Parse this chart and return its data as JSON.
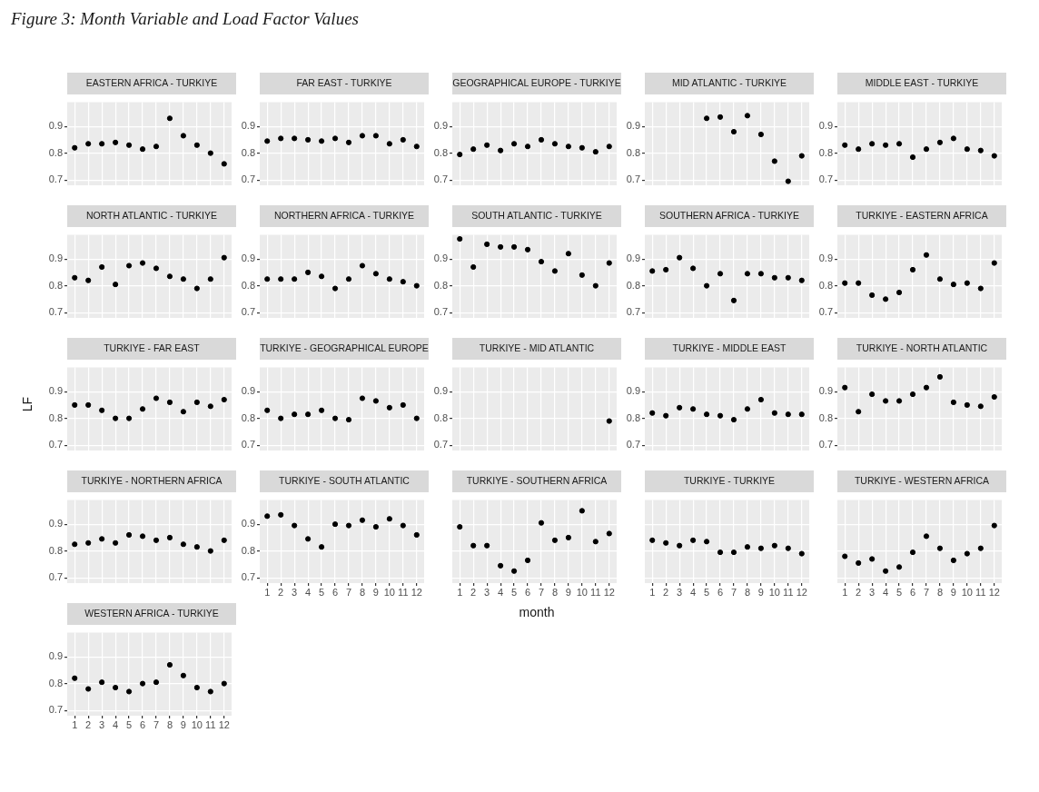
{
  "chart_data": [
    {
      "type": "scatter",
      "title": "EASTERN AFRICA - TURKIYE",
      "annotations": [
        "Figure 3: Month Variable and Load Factor Values"
      ],
      "x": [
        1,
        2,
        3,
        4,
        5,
        6,
        7,
        8,
        9,
        10,
        11,
        12
      ],
      "values": [
        0.82,
        0.835,
        0.835,
        0.84,
        0.83,
        0.815,
        0.825,
        0.93,
        0.865,
        0.83,
        0.8,
        0.76
      ],
      "color": "#000000",
      "marker": "circle",
      "xlim": [
        0.45,
        12.55
      ],
      "ylim": [
        0.68,
        0.99
      ],
      "xticks": [
        1,
        2,
        3,
        4,
        5,
        6,
        7,
        8,
        9,
        10,
        11,
        12
      ],
      "yticks": [
        0.7,
        0.8,
        0.9
      ],
      "grid": true,
      "tick_labels": "y"
    },
    {
      "type": "scatter",
      "title": "FAR EAST - TURKIYE",
      "x": [
        1,
        2,
        3,
        4,
        5,
        6,
        7,
        8,
        9,
        10,
        11,
        12
      ],
      "values": [
        0.845,
        0.855,
        0.855,
        0.85,
        0.845,
        0.855,
        0.84,
        0.865,
        0.865,
        0.835,
        0.85,
        0.825
      ],
      "color": "#000000",
      "marker": "circle",
      "xlim": [
        0.45,
        12.55
      ],
      "ylim": [
        0.68,
        0.99
      ],
      "xticks": [
        1,
        2,
        3,
        4,
        5,
        6,
        7,
        8,
        9,
        10,
        11,
        12
      ],
      "yticks": [
        0.7,
        0.8,
        0.9
      ],
      "grid": true,
      "tick_labels": "y"
    },
    {
      "type": "scatter",
      "title": "GEOGRAPHICAL EUROPE - TURKIYE",
      "x": [
        1,
        2,
        3,
        4,
        5,
        6,
        7,
        8,
        9,
        10,
        11,
        12
      ],
      "values": [
        0.795,
        0.815,
        0.83,
        0.81,
        0.835,
        0.825,
        0.85,
        0.835,
        0.825,
        0.82,
        0.805,
        0.825
      ],
      "color": "#000000",
      "marker": "circle",
      "xlim": [
        0.45,
        12.55
      ],
      "ylim": [
        0.68,
        0.99
      ],
      "xticks": [
        1,
        2,
        3,
        4,
        5,
        6,
        7,
        8,
        9,
        10,
        11,
        12
      ],
      "yticks": [
        0.7,
        0.8,
        0.9
      ],
      "grid": true,
      "tick_labels": "y"
    },
    {
      "type": "scatter",
      "title": "MID ATLANTIC - TURKIYE",
      "x": [
        5,
        6,
        7,
        8,
        9,
        10,
        11,
        12
      ],
      "values": [
        0.93,
        0.935,
        0.88,
        0.94,
        0.87,
        0.77,
        0.695,
        0.79
      ],
      "color": "#000000",
      "marker": "circle",
      "xlim": [
        0.45,
        12.55
      ],
      "ylim": [
        0.68,
        0.99
      ],
      "xticks": [
        1,
        2,
        3,
        4,
        5,
        6,
        7,
        8,
        9,
        10,
        11,
        12
      ],
      "yticks": [
        0.7,
        0.8,
        0.9
      ],
      "grid": true,
      "tick_labels": "y"
    },
    {
      "type": "scatter",
      "title": "MIDDLE EAST - TURKIYE",
      "x": [
        1,
        2,
        3,
        4,
        5,
        6,
        7,
        8,
        9,
        10,
        11,
        12
      ],
      "values": [
        0.83,
        0.815,
        0.835,
        0.83,
        0.835,
        0.785,
        0.815,
        0.84,
        0.855,
        0.815,
        0.81,
        0.79
      ],
      "color": "#000000",
      "marker": "circle",
      "xlim": [
        0.45,
        12.55
      ],
      "ylim": [
        0.68,
        0.99
      ],
      "xticks": [
        1,
        2,
        3,
        4,
        5,
        6,
        7,
        8,
        9,
        10,
        11,
        12
      ],
      "yticks": [
        0.7,
        0.8,
        0.9
      ],
      "grid": true,
      "tick_labels": "y"
    },
    {
      "type": "scatter",
      "title": "NORTH ATLANTIC - TURKIYE",
      "x": [
        1,
        2,
        3,
        4,
        5,
        6,
        7,
        8,
        9,
        10,
        11,
        12
      ],
      "values": [
        0.83,
        0.82,
        0.87,
        0.805,
        0.875,
        0.885,
        0.865,
        0.835,
        0.825,
        0.79,
        0.825,
        0.905
      ],
      "color": "#000000",
      "marker": "circle",
      "xlim": [
        0.45,
        12.55
      ],
      "ylim": [
        0.68,
        0.99
      ],
      "xticks": [
        1,
        2,
        3,
        4,
        5,
        6,
        7,
        8,
        9,
        10,
        11,
        12
      ],
      "yticks": [
        0.7,
        0.8,
        0.9
      ],
      "grid": true,
      "tick_labels": "y"
    },
    {
      "type": "scatter",
      "title": "NORTHERN AFRICA - TURKIYE",
      "x": [
        1,
        2,
        3,
        4,
        5,
        6,
        7,
        8,
        9,
        10,
        11,
        12
      ],
      "values": [
        0.825,
        0.825,
        0.825,
        0.85,
        0.835,
        0.79,
        0.825,
        0.875,
        0.845,
        0.825,
        0.815,
        0.8
      ],
      "color": "#000000",
      "marker": "circle",
      "xlim": [
        0.45,
        12.55
      ],
      "ylim": [
        0.68,
        0.99
      ],
      "xticks": [
        1,
        2,
        3,
        4,
        5,
        6,
        7,
        8,
        9,
        10,
        11,
        12
      ],
      "yticks": [
        0.7,
        0.8,
        0.9
      ],
      "grid": true,
      "tick_labels": "y"
    },
    {
      "type": "scatter",
      "title": "SOUTH ATLANTIC - TURKIYE",
      "x": [
        1,
        2,
        3,
        4,
        5,
        6,
        7,
        8,
        9,
        10,
        11,
        12
      ],
      "values": [
        0.975,
        0.87,
        0.955,
        0.945,
        0.945,
        0.935,
        0.89,
        0.855,
        0.92,
        0.84,
        0.8,
        0.885
      ],
      "color": "#000000",
      "marker": "circle",
      "xlim": [
        0.45,
        12.55
      ],
      "ylim": [
        0.68,
        0.99
      ],
      "xticks": [
        1,
        2,
        3,
        4,
        5,
        6,
        7,
        8,
        9,
        10,
        11,
        12
      ],
      "yticks": [
        0.7,
        0.8,
        0.9
      ],
      "grid": true,
      "tick_labels": "y"
    },
    {
      "type": "scatter",
      "title": "SOUTHERN AFRICA - TURKIYE",
      "x": [
        1,
        2,
        3,
        4,
        5,
        6,
        7,
        8,
        9,
        10,
        11,
        12
      ],
      "values": [
        0.855,
        0.86,
        0.905,
        0.865,
        0.8,
        0.845,
        0.745,
        0.845,
        0.845,
        0.83,
        0.83,
        0.82
      ],
      "color": "#000000",
      "marker": "circle",
      "xlim": [
        0.45,
        12.55
      ],
      "ylim": [
        0.68,
        0.99
      ],
      "xticks": [
        1,
        2,
        3,
        4,
        5,
        6,
        7,
        8,
        9,
        10,
        11,
        12
      ],
      "yticks": [
        0.7,
        0.8,
        0.9
      ],
      "grid": true,
      "tick_labels": "y"
    },
    {
      "type": "scatter",
      "title": "TURKIYE - EASTERN AFRICA",
      "x": [
        1,
        2,
        3,
        4,
        5,
        6,
        7,
        8,
        9,
        10,
        11,
        12
      ],
      "values": [
        0.81,
        0.81,
        0.765,
        0.75,
        0.775,
        0.86,
        0.915,
        0.825,
        0.805,
        0.81,
        0.79,
        0.885
      ],
      "color": "#000000",
      "marker": "circle",
      "xlim": [
        0.45,
        12.55
      ],
      "ylim": [
        0.68,
        0.99
      ],
      "xticks": [
        1,
        2,
        3,
        4,
        5,
        6,
        7,
        8,
        9,
        10,
        11,
        12
      ],
      "yticks": [
        0.7,
        0.8,
        0.9
      ],
      "grid": true,
      "tick_labels": "y"
    },
    {
      "type": "scatter",
      "title": "TURKIYE - FAR EAST",
      "ylabel": "LF",
      "x": [
        1,
        2,
        3,
        4,
        5,
        6,
        7,
        8,
        9,
        10,
        11,
        12
      ],
      "values": [
        0.85,
        0.85,
        0.83,
        0.8,
        0.8,
        0.835,
        0.875,
        0.86,
        0.825,
        0.86,
        0.845,
        0.87
      ],
      "color": "#000000",
      "marker": "circle",
      "xlim": [
        0.45,
        12.55
      ],
      "ylim": [
        0.68,
        0.99
      ],
      "xticks": [
        1,
        2,
        3,
        4,
        5,
        6,
        7,
        8,
        9,
        10,
        11,
        12
      ],
      "yticks": [
        0.7,
        0.8,
        0.9
      ],
      "grid": true,
      "tick_labels": "y"
    },
    {
      "type": "scatter",
      "title": "TURKIYE - GEOGRAPHICAL EUROPE",
      "x": [
        1,
        2,
        3,
        4,
        5,
        6,
        7,
        8,
        9,
        10,
        11,
        12
      ],
      "values": [
        0.83,
        0.8,
        0.815,
        0.815,
        0.83,
        0.8,
        0.795,
        0.875,
        0.865,
        0.84,
        0.85,
        0.8
      ],
      "color": "#000000",
      "marker": "circle",
      "xlim": [
        0.45,
        12.55
      ],
      "ylim": [
        0.68,
        0.99
      ],
      "xticks": [
        1,
        2,
        3,
        4,
        5,
        6,
        7,
        8,
        9,
        10,
        11,
        12
      ],
      "yticks": [
        0.7,
        0.8,
        0.9
      ],
      "grid": true,
      "tick_labels": "y"
    },
    {
      "type": "scatter",
      "title": "TURKIYE - MID ATLANTIC",
      "x": [
        12
      ],
      "values": [
        0.79
      ],
      "color": "#000000",
      "marker": "circle",
      "xlim": [
        0.45,
        12.55
      ],
      "ylim": [
        0.68,
        0.99
      ],
      "xticks": [
        1,
        2,
        3,
        4,
        5,
        6,
        7,
        8,
        9,
        10,
        11,
        12
      ],
      "yticks": [
        0.7,
        0.8,
        0.9
      ],
      "grid": true,
      "tick_labels": "y"
    },
    {
      "type": "scatter",
      "title": "TURKIYE - MIDDLE EAST",
      "x": [
        1,
        2,
        3,
        4,
        5,
        6,
        7,
        8,
        9,
        10,
        11,
        12
      ],
      "values": [
        0.82,
        0.81,
        0.84,
        0.835,
        0.815,
        0.81,
        0.795,
        0.835,
        0.87,
        0.82,
        0.815,
        0.815
      ],
      "color": "#000000",
      "marker": "circle",
      "xlim": [
        0.45,
        12.55
      ],
      "ylim": [
        0.68,
        0.99
      ],
      "xticks": [
        1,
        2,
        3,
        4,
        5,
        6,
        7,
        8,
        9,
        10,
        11,
        12
      ],
      "yticks": [
        0.7,
        0.8,
        0.9
      ],
      "grid": true,
      "tick_labels": "y"
    },
    {
      "type": "scatter",
      "title": "TURKIYE - NORTH ATLANTIC",
      "x": [
        1,
        2,
        3,
        4,
        5,
        6,
        7,
        8,
        9,
        10,
        11,
        12
      ],
      "values": [
        0.915,
        0.825,
        0.89,
        0.865,
        0.865,
        0.89,
        0.915,
        0.955,
        0.86,
        0.85,
        0.845,
        0.88
      ],
      "color": "#000000",
      "marker": "circle",
      "xlim": [
        0.45,
        12.55
      ],
      "ylim": [
        0.68,
        0.99
      ],
      "xticks": [
        1,
        2,
        3,
        4,
        5,
        6,
        7,
        8,
        9,
        10,
        11,
        12
      ],
      "yticks": [
        0.7,
        0.8,
        0.9
      ],
      "grid": true,
      "tick_labels": "y"
    },
    {
      "type": "scatter",
      "title": "TURKIYE - NORTHERN AFRICA",
      "x": [
        1,
        2,
        3,
        4,
        5,
        6,
        7,
        8,
        9,
        10,
        11,
        12
      ],
      "values": [
        0.825,
        0.83,
        0.845,
        0.83,
        0.86,
        0.855,
        0.84,
        0.85,
        0.825,
        0.815,
        0.8,
        0.84
      ],
      "color": "#000000",
      "marker": "circle",
      "xlim": [
        0.45,
        12.55
      ],
      "ylim": [
        0.68,
        0.99
      ],
      "xticks": [
        1,
        2,
        3,
        4,
        5,
        6,
        7,
        8,
        9,
        10,
        11,
        12
      ],
      "yticks": [
        0.7,
        0.8,
        0.9
      ],
      "grid": true,
      "tick_labels": "y"
    },
    {
      "type": "scatter",
      "title": "TURKIYE - SOUTH ATLANTIC",
      "x": [
        1,
        2,
        3,
        4,
        5,
        6,
        7,
        8,
        9,
        10,
        11,
        12
      ],
      "values": [
        0.93,
        0.935,
        0.895,
        0.845,
        0.815,
        0.9,
        0.895,
        0.915,
        0.89,
        0.92,
        0.895,
        0.86
      ],
      "color": "#000000",
      "marker": "circle",
      "xlim": [
        0.45,
        12.55
      ],
      "ylim": [
        0.68,
        0.99
      ],
      "xticks": [
        1,
        2,
        3,
        4,
        5,
        6,
        7,
        8,
        9,
        10,
        11,
        12
      ],
      "yticks": [
        0.7,
        0.8,
        0.9
      ],
      "grid": true
    },
    {
      "type": "scatter",
      "title": "TURKIYE - SOUTHERN AFRICA",
      "xlabel": "month",
      "x": [
        1,
        2,
        3,
        4,
        5,
        6,
        7,
        8,
        9,
        10,
        11,
        12
      ],
      "values": [
        0.89,
        0.82,
        0.82,
        0.745,
        0.725,
        0.765,
        0.905,
        0.84,
        0.85,
        0.95,
        0.835,
        0.865
      ],
      "color": "#000000",
      "marker": "circle",
      "xlim": [
        0.45,
        12.55
      ],
      "ylim": [
        0.68,
        0.99
      ],
      "xticks": [
        1,
        2,
        3,
        4,
        5,
        6,
        7,
        8,
        9,
        10,
        11,
        12
      ],
      "yticks": [
        0.7,
        0.8,
        0.9
      ],
      "grid": true,
      "tick_labels": "x"
    },
    {
      "type": "scatter",
      "title": "TURKIYE - TURKIYE",
      "x": [
        1,
        2,
        3,
        4,
        5,
        6,
        7,
        8,
        9,
        10,
        11,
        12
      ],
      "values": [
        0.84,
        0.83,
        0.82,
        0.84,
        0.835,
        0.795,
        0.795,
        0.815,
        0.81,
        0.82,
        0.81,
        0.79
      ],
      "color": "#000000",
      "marker": "circle",
      "xlim": [
        0.45,
        12.55
      ],
      "ylim": [
        0.68,
        0.99
      ],
      "xticks": [
        1,
        2,
        3,
        4,
        5,
        6,
        7,
        8,
        9,
        10,
        11,
        12
      ],
      "yticks": [
        0.7,
        0.8,
        0.9
      ],
      "grid": true,
      "tick_labels": "x"
    },
    {
      "type": "scatter",
      "title": "TURKIYE - WESTERN AFRICA",
      "x": [
        1,
        2,
        3,
        4,
        5,
        6,
        7,
        8,
        9,
        10,
        11,
        12
      ],
      "values": [
        0.78,
        0.755,
        0.77,
        0.725,
        0.74,
        0.795,
        0.855,
        0.81,
        0.765,
        0.79,
        0.81,
        0.895
      ],
      "color": "#000000",
      "marker": "circle",
      "xlim": [
        0.45,
        12.55
      ],
      "ylim": [
        0.68,
        0.99
      ],
      "xticks": [
        1,
        2,
        3,
        4,
        5,
        6,
        7,
        8,
        9,
        10,
        11,
        12
      ],
      "yticks": [
        0.7,
        0.8,
        0.9
      ],
      "grid": true,
      "tick_labels": "x"
    },
    {
      "type": "scatter",
      "title": "WESTERN AFRICA - TURKIYE",
      "x": [
        1,
        2,
        3,
        4,
        5,
        6,
        7,
        8,
        9,
        10,
        11,
        12
      ],
      "values": [
        0.82,
        0.78,
        0.805,
        0.785,
        0.77,
        0.8,
        0.805,
        0.87,
        0.83,
        0.785,
        0.77,
        0.8
      ],
      "color": "#000000",
      "marker": "circle",
      "xlim": [
        0.45,
        12.55
      ],
      "ylim": [
        0.68,
        0.99
      ],
      "xticks": [
        1,
        2,
        3,
        4,
        5,
        6,
        7,
        8,
        9,
        10,
        11,
        12
      ],
      "yticks": [
        0.7,
        0.8,
        0.9
      ],
      "grid": true
    }
  ]
}
